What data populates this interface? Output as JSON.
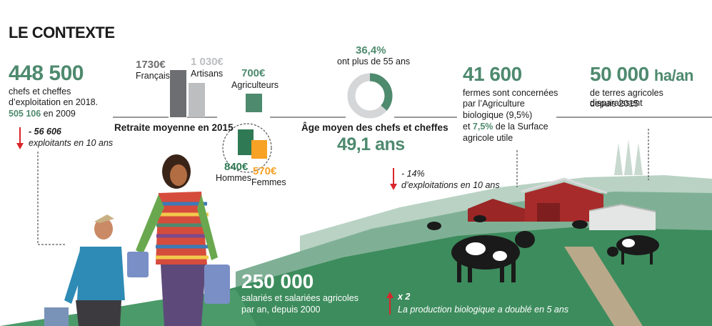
{
  "title": "LE CONTEXTE",
  "stat_exploitants": {
    "value": "448 500",
    "line1": "chefs et cheffes",
    "line2": "d’exploitation en 2018.",
    "prev_value": "505 106",
    "prev_label": "en 2009",
    "change_value": "- 56 606",
    "change_label": "exploitants en 10 ans"
  },
  "retraite": {
    "title": "Retraite moyenne en 2015",
    "francais_value": "1730€",
    "francais_label": "Français",
    "artisans_value": "1 030€",
    "artisans_label": "Artisans",
    "agriculteurs_value": "700€",
    "agriculteurs_label": "Agriculteurs",
    "hommes_value": "840€",
    "hommes_label": "Hommes",
    "femmes_value": "570€",
    "femmes_label": "Femmes"
  },
  "age": {
    "pct_value": "36,4%",
    "pct_label": "ont plus de 55 ans",
    "pct_fraction": 0.364,
    "title": "Âge moyen des chefs et cheffes",
    "value": "49,1 ans",
    "change_value": "- 14%",
    "change_label": "d’exploitations en 10 ans"
  },
  "bio": {
    "value": "41 600",
    "line1": "fermes sont concernées",
    "line2": "par l’Agriculture",
    "line3": "biologique (9,5%)",
    "line4_pre": "et",
    "line4_value": "7,5%",
    "line4_post": "de la Surface",
    "line5": "agricole utile"
  },
  "terres": {
    "value": "50 000",
    "unit": "ha/an",
    "line1": "de terres agricoles disparaissent",
    "line2": "depuis 2015"
  },
  "salaries": {
    "value": "250 000",
    "line1": "salariés et salariées agricoles",
    "line2": "par an, depuis 2000"
  },
  "production": {
    "change_value": "x 2",
    "change_label": "La production biologique a doublé en 5 ans"
  },
  "colors": {
    "green": "#4e8a6e",
    "red": "#d9262b",
    "grey_dark": "#6d6e71",
    "grey_light": "#bcbec0",
    "orange": "#f7a125",
    "field": "#3d8c5d"
  }
}
